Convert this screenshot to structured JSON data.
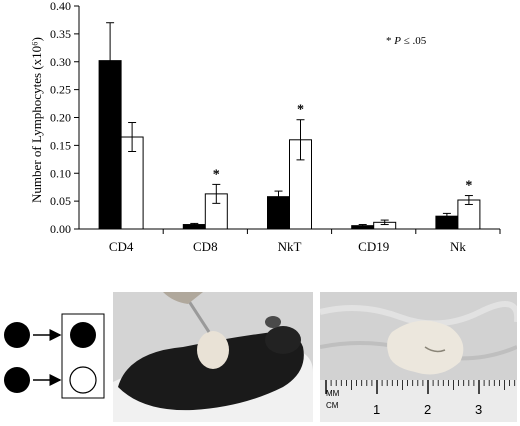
{
  "chart_data": {
    "type": "bar",
    "categories": [
      "CD4",
      "CD8",
      "NkT",
      "CD19",
      "Nk"
    ],
    "series": [
      {
        "color": "#000000",
        "values": [
          0.302,
          0.008,
          0.058,
          0.006,
          0.023
        ],
        "errors": [
          0.068,
          0.002,
          0.01,
          0.002,
          0.005
        ]
      },
      {
        "color": "#ffffff",
        "values": [
          0.165,
          0.063,
          0.16,
          0.012,
          0.052
        ],
        "errors": [
          0.026,
          0.017,
          0.036,
          0.004,
          0.008
        ]
      }
    ],
    "ylabel": "Number of Lymphocytes (x10⁶)",
    "ylim": [
      0,
      0.4
    ],
    "yticks": [
      "0.00",
      "0.05",
      "0.10",
      "0.15",
      "0.20",
      "0.25",
      "0.30",
      "0.35",
      "0.40"
    ],
    "significance_marks": [
      {
        "category": "CD8",
        "series": 1,
        "label": "*"
      },
      {
        "category": "NkT",
        "series": 1,
        "label": "*"
      },
      {
        "category": "Nk",
        "series": 1,
        "label": "*"
      }
    ],
    "annotation": {
      "star": "* ",
      "italic": "P",
      "rest": " ≤ .05"
    },
    "grid": false
  },
  "schematic": {
    "donors": [
      "filled",
      "filled"
    ],
    "recipients": [
      "filled",
      "open"
    ]
  },
  "ruler": {
    "unit_top": "MM",
    "unit_bottom": "CM",
    "numbers": [
      "1",
      "2",
      "3"
    ]
  }
}
